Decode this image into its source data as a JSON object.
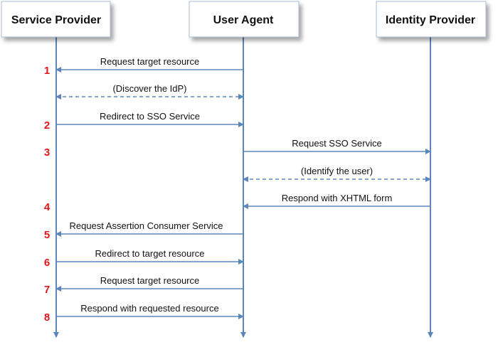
{
  "participants": [
    {
      "label": "Service Provider"
    },
    {
      "label": "User Agent"
    },
    {
      "label": "Identity Provider"
    }
  ],
  "messages": [
    {
      "step": "1",
      "label": "Request target resource",
      "from": 1,
      "to": 0,
      "style": "solid"
    },
    {
      "step": "",
      "label": "(Discover the IdP)",
      "from": 0,
      "to": 1,
      "style": "dashed-bidirectional"
    },
    {
      "step": "2",
      "label": "Redirect to SSO Service",
      "from": 0,
      "to": 1,
      "style": "solid"
    },
    {
      "step": "3",
      "label": "Request SSO Service",
      "from": 1,
      "to": 2,
      "style": "solid"
    },
    {
      "step": "",
      "label": "(Identify the user)",
      "from": 1,
      "to": 2,
      "style": "dashed-bidirectional"
    },
    {
      "step": "4",
      "label": "Respond with XHTML form",
      "from": 2,
      "to": 1,
      "style": "solid"
    },
    {
      "step": "5",
      "label": "Request Assertion Consumer Service",
      "from": 1,
      "to": 0,
      "style": "solid"
    },
    {
      "step": "6",
      "label": "Redirect to target resource",
      "from": 0,
      "to": 1,
      "style": "solid"
    },
    {
      "step": "7",
      "label": "Request target resource",
      "from": 1,
      "to": 0,
      "style": "solid"
    },
    {
      "step": "8",
      "label": "Respond with requested resource",
      "from": 0,
      "to": 1,
      "style": "solid"
    }
  ],
  "colors": {
    "lifeline": "#5b86bb",
    "step_number": "#e3161b"
  }
}
